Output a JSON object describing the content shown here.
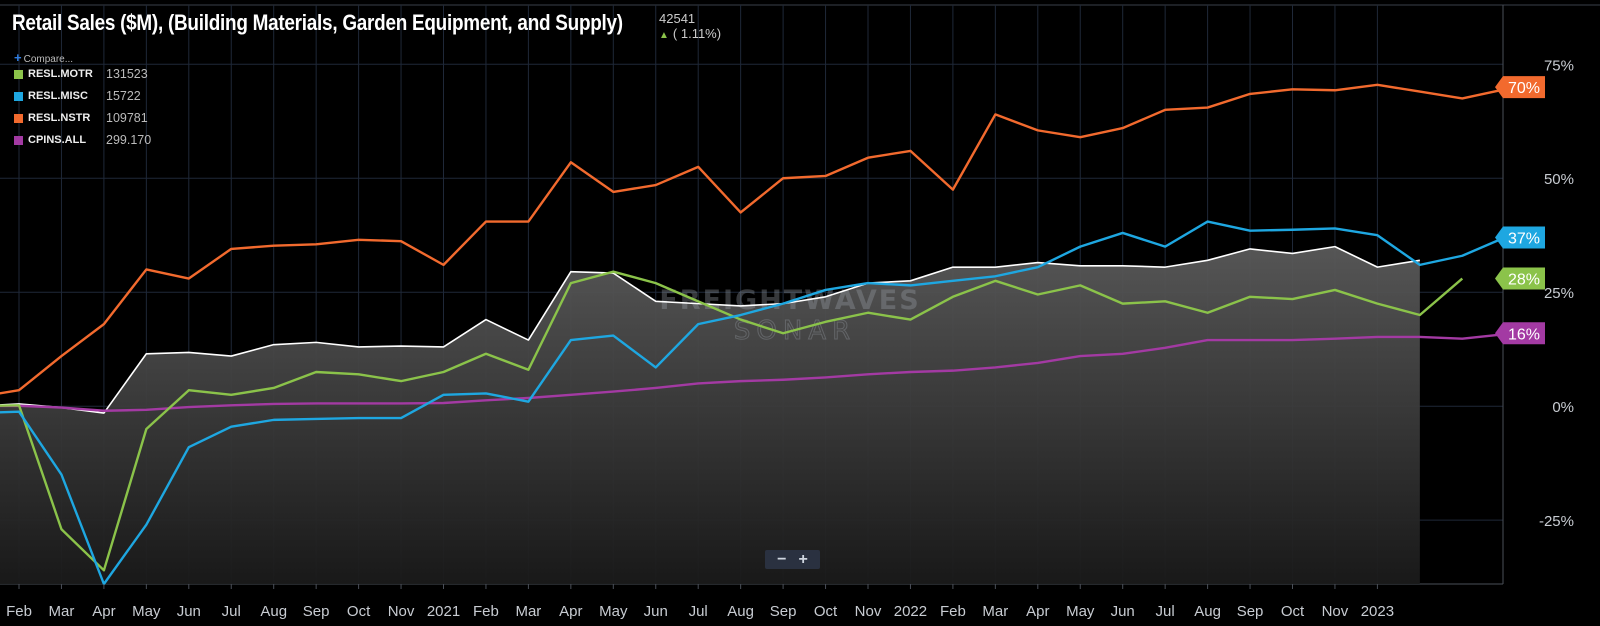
{
  "header": {
    "title": "Retail Sales ($M), (Building Materials, Garden Equipment, and Supply)",
    "value": "42541",
    "change": "( 1.11%)",
    "change_icon": "up-arrow-icon"
  },
  "compare": {
    "label": "Compare..."
  },
  "legend": [
    {
      "code": "RESL.MOTR",
      "value": "131523",
      "color": "#8bc34a"
    },
    {
      "code": "RESL.MISC",
      "value": "15722",
      "color": "#1ea7e1"
    },
    {
      "code": "RESL.NSTR",
      "value": "109781",
      "color": "#f26a2e"
    },
    {
      "code": "CPINS.ALL",
      "value": "299.170",
      "color": "#a33aa3"
    }
  ],
  "watermark": {
    "line1": "FREIGHTWAVES",
    "line2": "SONAR"
  },
  "zoom": {
    "minus": "−",
    "plus": "+"
  },
  "chart_data": {
    "type": "line",
    "y_unit": "%",
    "y_ticks": [
      "75%",
      "50%",
      "25%",
      "0%",
      "-25%"
    ],
    "y_tick_values": [
      75,
      50,
      25,
      0,
      -25
    ],
    "ylim": [
      -39,
      88
    ],
    "x_ticks": [
      "Feb",
      "Mar",
      "Apr",
      "May",
      "Jun",
      "Jul",
      "Aug",
      "Sep",
      "Oct",
      "Nov",
      "2021",
      "Feb",
      "Mar",
      "Apr",
      "May",
      "Jun",
      "Jul",
      "Aug",
      "Sep",
      "Oct",
      "Nov",
      "2022",
      "Feb",
      "Mar",
      "Apr",
      "May",
      "Jun",
      "Jul",
      "Aug",
      "Sep",
      "Oct",
      "Nov",
      "2023"
    ],
    "grid": true,
    "x_months_start": "2020-01",
    "series": [
      {
        "name": "Retail Sales ($M), (Building Materials, Garden Equipment, and Supply)",
        "color": "#ffffff",
        "area": true,
        "values": [
          0,
          0.5,
          -0.3,
          -1.5,
          11.5,
          11.8,
          11.0,
          13.5,
          14.0,
          13.0,
          13.2,
          13.0,
          19.0,
          14.5,
          29.5,
          29.2,
          23.0,
          22.5,
          22.0,
          22.5,
          24.0,
          27.0,
          27.5,
          30.5,
          30.5,
          31.5,
          30.8,
          30.8,
          30.5,
          32.0,
          34.5,
          33.5,
          35.0,
          30.5,
          32.0
        ]
      },
      {
        "name": "RESL.MOTR",
        "color": "#8bc34a",
        "values": [
          0,
          0.2,
          -27,
          -36,
          -5,
          3.5,
          2.5,
          4,
          7.5,
          7,
          5.5,
          7.5,
          11.5,
          8,
          27,
          29.5,
          27,
          23,
          19,
          16,
          18.5,
          20.5,
          19,
          24,
          27.5,
          24.5,
          26.5,
          22.5,
          23,
          20.5,
          24,
          23.5,
          25.5,
          22.5,
          20,
          28
        ]
      },
      {
        "name": "RESL.MISC",
        "color": "#1ea7e1",
        "values": [
          -1.5,
          -1.2,
          -15,
          -39,
          -26,
          -9,
          -4.5,
          -3,
          -2.8,
          -2.6,
          -2.6,
          2.5,
          2.8,
          1,
          14.5,
          15.5,
          8.5,
          18,
          20,
          22.5,
          25.5,
          27,
          26.5,
          27.5,
          28.5,
          30.5,
          35,
          38,
          35,
          40.5,
          38.5,
          38.7,
          39,
          37.5,
          31,
          33,
          37
        ]
      },
      {
        "name": "RESL.NSTR",
        "color": "#f26a2e",
        "values": [
          2,
          3.5,
          11,
          18,
          30,
          28,
          34.5,
          35.2,
          35.5,
          36.5,
          36.2,
          31,
          40.5,
          40.5,
          53.5,
          47,
          48.5,
          52.5,
          42.5,
          50,
          50.5,
          54.5,
          56,
          47.5,
          64,
          60.5,
          59,
          61,
          65,
          65.5,
          68.5,
          69.5,
          69.3,
          70.5,
          69,
          67.5,
          69.5
        ]
      },
      {
        "name": "CPINS.ALL",
        "color": "#a33aa3",
        "values": [
          0,
          0.1,
          -0.3,
          -1,
          -0.8,
          -0.2,
          0.2,
          0.5,
          0.6,
          0.6,
          0.6,
          0.7,
          1.3,
          1.8,
          2.5,
          3.2,
          4,
          5,
          5.5,
          5.8,
          6.3,
          7,
          7.5,
          7.8,
          8.5,
          9.5,
          11,
          11.5,
          12.8,
          14.5,
          14.5,
          14.5,
          14.8,
          15.2,
          15.2,
          14.8,
          15.8
        ]
      }
    ],
    "end_labels": [
      {
        "text": "70%",
        "color": "#f26a2e",
        "value": 70
      },
      {
        "text": "37%",
        "color": "#1ea7e1",
        "value": 37
      },
      {
        "text": "28%",
        "color": "#8bc34a",
        "value": 28
      },
      {
        "text": "16%",
        "color": "#a33aa3",
        "value": 16
      }
    ]
  }
}
